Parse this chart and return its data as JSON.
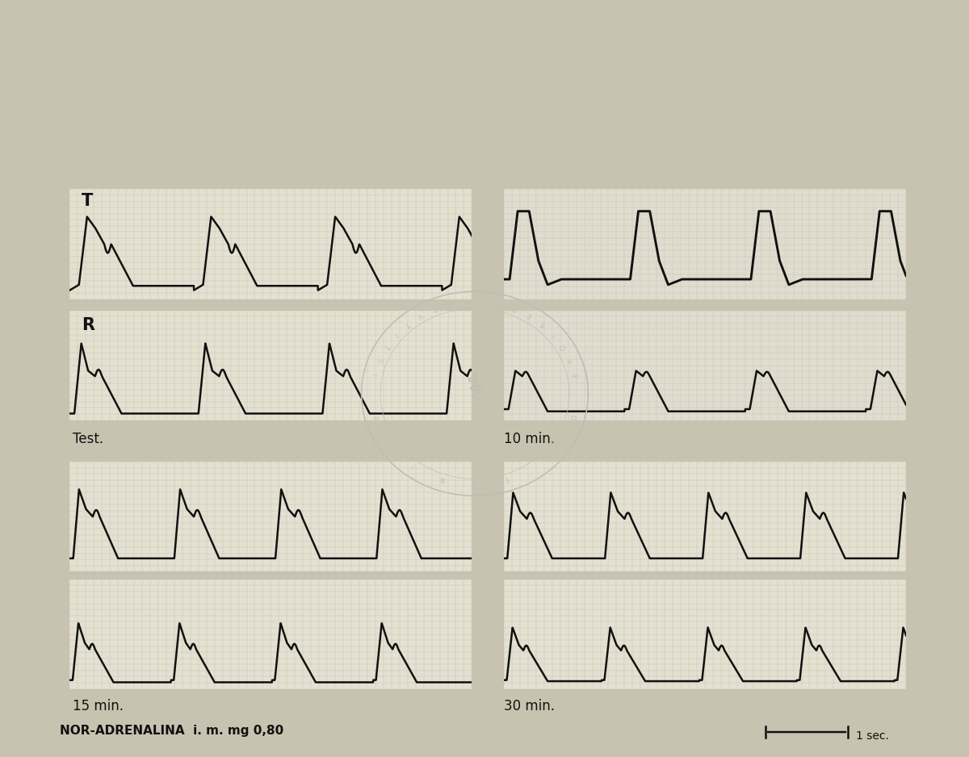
{
  "outer_bg": "#c8c3b0",
  "inner_bg": "#f5f2e8",
  "panel_bg_grid": "#e8e4d5",
  "panel_bg_white": "#f0ede0",
  "line_color": "#111111",
  "text_color": "#111111",
  "grid_line_color": "#c0bba8",
  "watermark_color": "#c0bdb5",
  "labels": {
    "top_left": "Test.",
    "top_right": "10 min.",
    "bottom_left": "15 min.",
    "bottom_right": "30 min.",
    "bottom_text": "NOR-ADRENALINA  i. m. mg 0,80",
    "scale_text": "1 sec.",
    "T_label": "T",
    "R_label": "R"
  }
}
